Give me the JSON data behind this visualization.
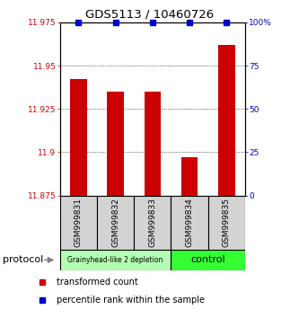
{
  "title": "GDS5113 / 10460726",
  "samples": [
    "GSM999831",
    "GSM999832",
    "GSM999833",
    "GSM999834",
    "GSM999835"
  ],
  "red_values": [
    11.942,
    11.935,
    11.935,
    11.897,
    11.962
  ],
  "blue_values": [
    100,
    100,
    100,
    100,
    100
  ],
  "ylim_left": [
    11.875,
    11.975
  ],
  "ylim_right": [
    0,
    100
  ],
  "yticks_left": [
    11.875,
    11.9,
    11.925,
    11.95,
    11.975
  ],
  "yticks_right": [
    0,
    25,
    50,
    75,
    100
  ],
  "ytick_labels_left": [
    "11.875",
    "11.9",
    "11.925",
    "11.95",
    "11.975"
  ],
  "ytick_labels_right": [
    "0",
    "25",
    "50",
    "75",
    "100%"
  ],
  "group1_label": "Grainyhead-like 2 depletion",
  "group2_label": "control",
  "group1_indices": [
    0,
    1,
    2
  ],
  "group2_indices": [
    3,
    4
  ],
  "group1_color": "#b3ffb3",
  "group2_color": "#33ff33",
  "bar_color": "#cc0000",
  "dot_color": "#0000cc",
  "protocol_label": "protocol",
  "legend_red": "transformed count",
  "legend_blue": "percentile rank within the sample",
  "sample_box_color": "#d3d3d3",
  "tick_color_left": "#cc0000",
  "tick_color_right": "#0000cc",
  "arrow_color": "#808080"
}
